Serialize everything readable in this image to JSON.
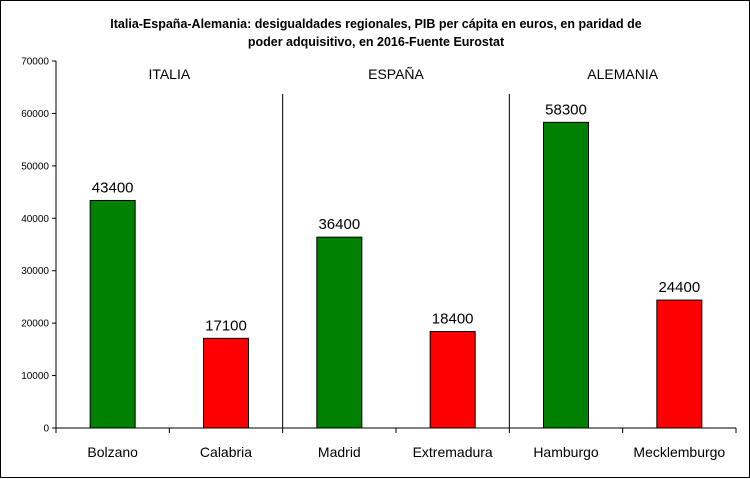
{
  "chart_data": {
    "type": "bar",
    "title_lines": [
      "Italia-España-Alemania: desigualdades regionales, PIB per cápita en euros, en paridad de",
      "poder adquisitivo, en 2016-Fuente Eurostat"
    ],
    "categories": [
      "Bolzano",
      "Calabria",
      "Madrid",
      "Extremadura",
      "Hamburgo",
      "Mecklemburgo"
    ],
    "values": [
      43400,
      17100,
      36400,
      18400,
      58300,
      24400
    ],
    "data_labels": [
      "43400",
      "17100",
      "36400",
      "18400",
      "58300",
      "24400"
    ],
    "bar_colors": [
      "#008000",
      "#ff0000",
      "#008000",
      "#ff0000",
      "#008000",
      "#ff0000"
    ],
    "groups": [
      {
        "label": "ITALIA",
        "categories": [
          "Bolzano",
          "Calabria"
        ]
      },
      {
        "label": "ESPAÑA",
        "categories": [
          "Madrid",
          "Extremadura"
        ]
      },
      {
        "label": "ALEMANIA",
        "categories": [
          "Hamburgo",
          "Mecklemburgo"
        ]
      }
    ],
    "ylim": [
      0,
      70000
    ],
    "yticks": [
      0,
      10000,
      20000,
      30000,
      40000,
      50000,
      60000,
      70000
    ],
    "ytick_labels": [
      "0",
      "10000",
      "20000",
      "30000",
      "40000",
      "50000",
      "60000",
      "70000"
    ],
    "grid": false,
    "legend": "none"
  }
}
